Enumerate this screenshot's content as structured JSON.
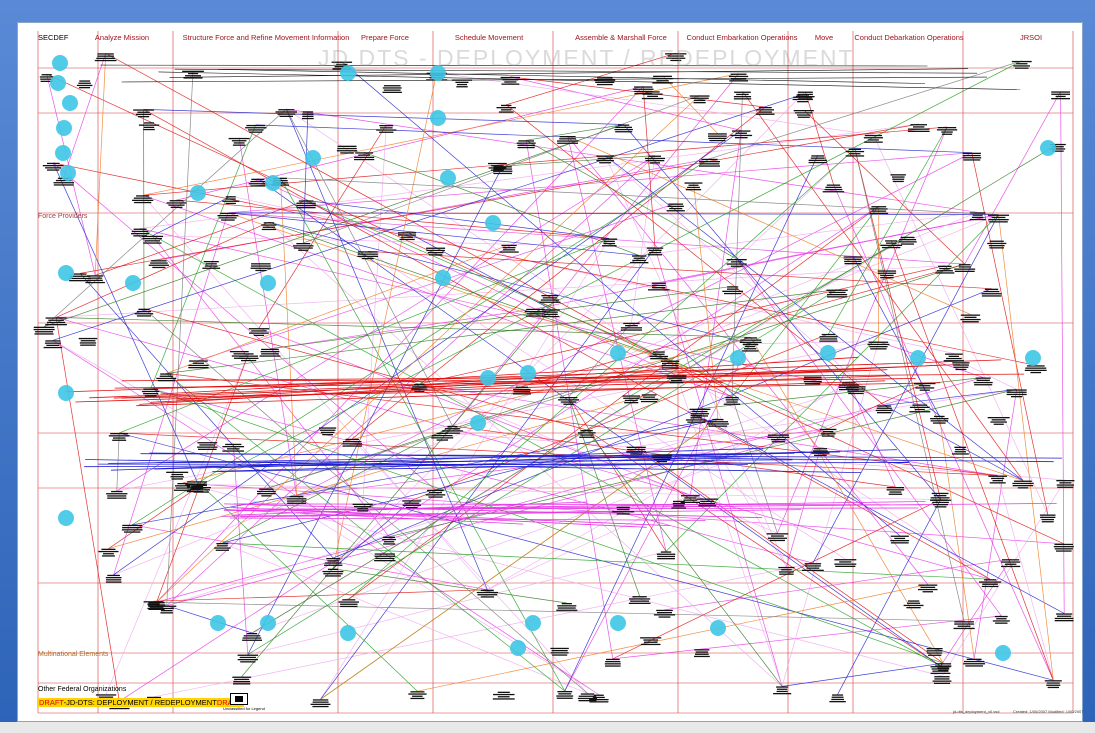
{
  "sheet_title_watermark": "JD DTS - DEPLOYMENT / REDEPLOYMENT",
  "phases": [
    {
      "label": "SECDEF"
    },
    {
      "label": "Analyze Mission"
    },
    {
      "label": "Structure Force and Refine Movement Information"
    },
    {
      "label": "Prepare Force"
    },
    {
      "label": "Schedule Movement"
    },
    {
      "label": "Assemble & Marshall Force"
    },
    {
      "label": "Conduct Embarkation Operations"
    },
    {
      "label": "Move"
    },
    {
      "label": "Conduct Debarkation Operations"
    },
    {
      "label": "JRSOI"
    }
  ],
  "row_labels": [
    {
      "label": "Force Providers"
    },
    {
      "label": "Multinational Elements"
    },
    {
      "label": "Other Federal Organizations"
    }
  ],
  "footer": {
    "draft_left": "DRAFT",
    "banner_text": "-JD-DTS: DEPLOYMENT / REDEPLOYMENT",
    "draft_right": "DRAFT",
    "legend_caption": "Unclassified\nfor Legend",
    "file_note": "jd-dts_deployment_v0.vsd",
    "date_note": "Created: 1/00/2007  Modified: 1/00/2007"
  },
  "colors": {
    "grid_red": "#d63a3a",
    "milestone_cyan": "#3ec6e6",
    "magenta": "#e638e6",
    "pink": "#f0a8f0",
    "red": "#e01010",
    "blue": "#2020d0",
    "green": "#1fa01f",
    "dark_green": "#2f7a1f",
    "orange": "#f07a20",
    "gray": "#777777"
  }
}
